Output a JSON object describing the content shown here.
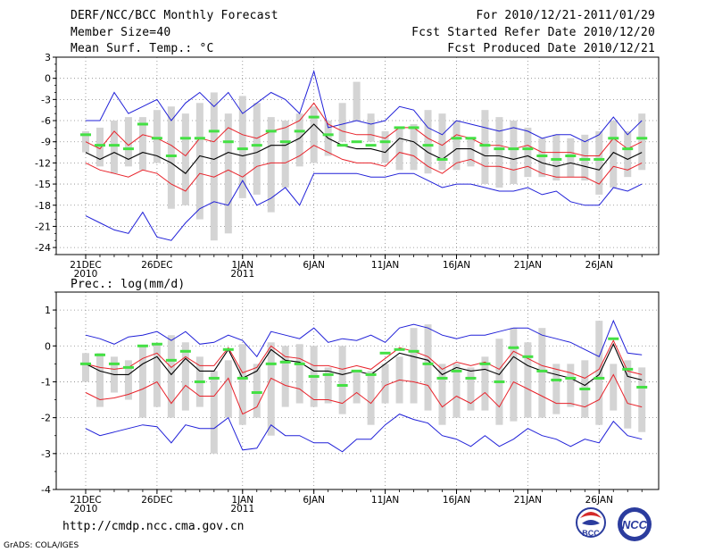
{
  "header": {
    "title": "DERF/NCC/BCC Monthly Forecast",
    "member_size": "Member Size=40",
    "variable": "Mean Surf. Temp.: °C",
    "forecast_period": "For 2010/12/21-2011/01/29",
    "fcst_started": "Fcst Started Refer Date 2010/12/20",
    "fcst_produced": "Fcst Produced Date 2010/12/21"
  },
  "footer": {
    "url": "http://cmdp.ncc.cma.gov.cn",
    "credit": "GrADS: COLA/IGES",
    "logo_bcc": "BCC",
    "logo_ncc": "NCC"
  },
  "colors": {
    "box": "#d4d4d4",
    "median": "#44e044",
    "mean": "#000000",
    "std": "#e8222a",
    "extreme": "#2020d8",
    "grid": "#888888"
  },
  "chart_data": [
    {
      "type": "box",
      "title": "Mean Surf. Temp.: °C",
      "x_labels": [
        "21DEC\n2010",
        "26DEC",
        "1JAN\n2011",
        "6JAN",
        "11JAN",
        "16JAN",
        "21JAN",
        "26JAN"
      ],
      "x_label_days": [
        1,
        6,
        12,
        17,
        22,
        27,
        32,
        37
      ],
      "days": 40,
      "ylim": [
        -25,
        3
      ],
      "yticks": [
        3,
        0,
        -3,
        -6,
        -9,
        -12,
        -15,
        -18,
        -21,
        -24
      ],
      "box_low": [
        -10.5,
        -12.5,
        -13.5,
        -12.5,
        -13,
        -12,
        -18.5,
        -18,
        -20,
        -23,
        -22,
        -17,
        -16.5,
        -19,
        -15.5,
        -12.5,
        -12,
        -11,
        -9,
        -6,
        -9,
        -12,
        -13,
        -13,
        -13.5,
        -13,
        -13,
        -12.5,
        -15,
        -15.5,
        -15,
        -14,
        -14,
        -14.5,
        -14,
        -14.5,
        -16.5,
        -15.5,
        -14,
        -13
      ],
      "box_high": [
        -7.5,
        -7,
        -6,
        -5.5,
        -5.5,
        -4.5,
        -4,
        -5,
        -3.5,
        -2,
        -5,
        -2.5,
        -3.5,
        -5.5,
        -6,
        -5,
        -4,
        -6,
        -3.5,
        -0.5,
        -5,
        -7.5,
        -7,
        -6.5,
        -4.5,
        -5,
        -6,
        -8.5,
        -4.5,
        -5.5,
        -6,
        -7,
        -8.5,
        -8,
        -8.5,
        -8,
        -7.5,
        -6,
        -7.5,
        -5
      ],
      "median": [
        -8,
        -9.5,
        -9.5,
        -10,
        -6.5,
        -8.5,
        -11,
        -8.5,
        -8.5,
        -7.5,
        -9,
        -10,
        -9.5,
        -7.5,
        -9,
        -7.5,
        -5.5,
        -8,
        -9.5,
        -9,
        -9.5,
        -9,
        -7,
        -7,
        -9.5,
        -11.5,
        -8.5,
        -8.5,
        -9.5,
        -10,
        -10,
        -10,
        -11,
        -11.5,
        -11,
        -11.5,
        -11.5,
        -8.5,
        -10,
        -8.5
      ],
      "mean": [
        -10.5,
        -11.5,
        -10.5,
        -11.5,
        -10.5,
        -11,
        -12,
        -13.5,
        -11,
        -11.5,
        -10.5,
        -11,
        -10.5,
        -9.5,
        -9.5,
        -8.5,
        -6.5,
        -8.5,
        -9.5,
        -10,
        -10,
        -10.5,
        -8.5,
        -9,
        -10.5,
        -11.5,
        -10,
        -10,
        -11,
        -11,
        -11.5,
        -11,
        -12,
        -12.5,
        -12,
        -12.5,
        -13,
        -10.5,
        -11.5,
        -10.5
      ],
      "std_high": [
        -9,
        -10,
        -7.5,
        -9.5,
        -8,
        -8.5,
        -9.5,
        -11,
        -8.5,
        -9,
        -7,
        -8,
        -8.5,
        -7.5,
        -7,
        -6,
        -3.5,
        -6.5,
        -7.5,
        -8,
        -8,
        -8.5,
        -7,
        -7,
        -8.5,
        -9.5,
        -8,
        -8.5,
        -9.5,
        -9.5,
        -10,
        -9.5,
        -10.5,
        -10.5,
        -10.5,
        -11,
        -11,
        -8.5,
        -10,
        -9
      ],
      "std_low": [
        -12,
        -13,
        -13.5,
        -14,
        -13,
        -13.5,
        -15,
        -16,
        -13.5,
        -14,
        -13,
        -14,
        -12.5,
        -12,
        -12,
        -11,
        -9.5,
        -10.5,
        -11.5,
        -12,
        -12,
        -12.5,
        -10.5,
        -11,
        -12.5,
        -13.5,
        -12,
        -11.5,
        -12.5,
        -12.5,
        -13,
        -12.5,
        -13.5,
        -14,
        -14,
        -14,
        -15,
        -12.5,
        -13,
        -12
      ],
      "max": [
        -6,
        -6,
        -2,
        -5,
        -4,
        -3,
        -6,
        -3.5,
        -2,
        -4,
        -2,
        -5,
        -3.5,
        -2,
        -3,
        -5,
        1,
        -7,
        -6.5,
        -6,
        -6.5,
        -6,
        -4,
        -4.5,
        -7,
        -8,
        -6,
        -6.5,
        -7,
        -7.5,
        -7,
        -7.5,
        -8.5,
        -8,
        -8,
        -9,
        -8,
        -5.5,
        -8,
        -6
      ],
      "min": [
        -19.5,
        -20.5,
        -21.5,
        -22,
        -19,
        -22.5,
        -23,
        -20.5,
        -18.5,
        -17.5,
        -18,
        -14.5,
        -18,
        -17,
        -15.5,
        -18,
        -13.5,
        -13.5,
        -13.5,
        -13.5,
        -14,
        -14,
        -13.5,
        -13.5,
        -14.5,
        -15.5,
        -15,
        -15,
        -15.5,
        -16,
        -16,
        -15.5,
        -16.5,
        -16,
        -17.5,
        -18,
        -18,
        -15.5,
        -16,
        -15
      ]
    },
    {
      "type": "box",
      "title": "Prec.: log(mm/d)",
      "x_labels": [
        "21DEC\n2010",
        "26DEC",
        "1JAN\n2011",
        "6JAN",
        "11JAN",
        "16JAN",
        "21JAN",
        "26JAN"
      ],
      "x_label_days": [
        1,
        6,
        12,
        17,
        22,
        27,
        32,
        37
      ],
      "days": 40,
      "ylim": [
        -4,
        1.5
      ],
      "yticks": [
        1,
        0,
        -1,
        -2,
        -3,
        -4
      ],
      "box_low": [
        -1,
        -1.7,
        -1.3,
        -1.5,
        -2,
        -1.7,
        -2,
        -1.8,
        -1.7,
        -3,
        -2,
        -2.2,
        -2,
        -2.5,
        -1.7,
        -1.6,
        -1.7,
        -1.6,
        -1.9,
        -1.6,
        -2.2,
        -1.6,
        -1.6,
        -1.6,
        -1.8,
        -2.2,
        -2,
        -1.8,
        -1.8,
        -2.2,
        -2.1,
        -2,
        -2,
        -1.9,
        -1.7,
        -2,
        -2.2,
        -1.8,
        -2.3,
        -2.4
      ],
      "box_high": [
        -0.2,
        -0.2,
        -0.3,
        -0.4,
        0,
        0.05,
        0.3,
        0.1,
        -0.3,
        -0.7,
        -0.4,
        0.05,
        -0.5,
        0.1,
        0,
        0.05,
        0,
        -0.6,
        0,
        -0.7,
        -0.7,
        -0.5,
        -0.3,
        0.5,
        0.6,
        -0.5,
        -0.5,
        -0.6,
        -0.3,
        0.2,
        0.5,
        0.1,
        0.5,
        -0.5,
        -0.5,
        -0.4,
        0.7,
        -0.5,
        -0.4,
        -0.6
      ],
      "median": [
        -0.5,
        -0.25,
        -0.5,
        -0.6,
        0,
        0.05,
        -0.4,
        -0.15,
        -1,
        -0.9,
        -0.1,
        -0.9,
        -1.3,
        -0.5,
        -0.45,
        -0.5,
        -0.85,
        -0.8,
        -1.1,
        -0.7,
        -0.8,
        -0.2,
        -0.1,
        -0.15,
        -0.5,
        -0.9,
        -0.7,
        -0.9,
        -0.5,
        -1,
        -0.05,
        -0.3,
        -0.7,
        -0.95,
        -0.9,
        -1.2,
        -0.9,
        0.2,
        -0.65,
        -1.15
      ],
      "mean": [
        -0.5,
        -0.7,
        -0.8,
        -0.8,
        -0.5,
        -0.3,
        -0.8,
        -0.35,
        -0.7,
        -0.7,
        -0.1,
        -0.9,
        -0.7,
        -0.1,
        -0.4,
        -0.45,
        -0.7,
        -0.7,
        -0.8,
        -0.7,
        -0.8,
        -0.5,
        -0.2,
        -0.3,
        -0.4,
        -0.8,
        -0.6,
        -0.7,
        -0.65,
        -0.8,
        -0.3,
        -0.55,
        -0.7,
        -0.8,
        -0.9,
        -1.1,
        -0.8,
        0.05,
        -0.85,
        -0.95
      ],
      "std_high": [
        -0.5,
        -0.6,
        -0.65,
        -0.6,
        -0.35,
        -0.2,
        -0.6,
        -0.3,
        -0.55,
        -0.55,
        -0.05,
        -0.75,
        -0.6,
        0,
        -0.3,
        -0.35,
        -0.55,
        -0.55,
        -0.65,
        -0.55,
        -0.65,
        -0.35,
        -0.05,
        -0.15,
        -0.3,
        -0.65,
        -0.45,
        -0.55,
        -0.45,
        -0.65,
        -0.15,
        -0.35,
        -0.55,
        -0.65,
        -0.75,
        -0.9,
        -0.65,
        0.15,
        -0.7,
        -0.8
      ],
      "std_low": [
        -1.3,
        -1.5,
        -1.45,
        -1.35,
        -1.2,
        -1,
        -1.6,
        -1.1,
        -1.4,
        -1.4,
        -0.9,
        -1.9,
        -1.7,
        -0.9,
        -1.1,
        -1.2,
        -1.5,
        -1.5,
        -1.6,
        -1.3,
        -1.6,
        -1.1,
        -0.95,
        -1,
        -1.1,
        -1.7,
        -1.4,
        -1.6,
        -1.3,
        -1.7,
        -1,
        -1.2,
        -1.4,
        -1.6,
        -1.6,
        -1.7,
        -1.5,
        -0.8,
        -1.6,
        -1.7
      ],
      "max": [
        0.3,
        0.2,
        0.05,
        0.25,
        0.3,
        0.4,
        0.15,
        0.4,
        0.05,
        0.1,
        0.3,
        0.15,
        -0.3,
        0.4,
        0.3,
        0.2,
        0.5,
        0.1,
        0.2,
        0.15,
        0.3,
        0.1,
        0.5,
        0.6,
        0.5,
        0.3,
        0.2,
        0.3,
        0.3,
        0.4,
        0.5,
        0.5,
        0.3,
        0.2,
        0.1,
        -0.1,
        -0.3,
        0.7,
        -0.2,
        -0.25
      ],
      "min": [
        -2.3,
        -2.5,
        -2.4,
        -2.3,
        -2.2,
        -2.25,
        -2.7,
        -2.2,
        -2.3,
        -2.3,
        -2,
        -2.9,
        -2.85,
        -2.2,
        -2.5,
        -2.5,
        -2.7,
        -2.7,
        -2.95,
        -2.6,
        -2.6,
        -2.2,
        -1.9,
        -2.05,
        -2.15,
        -2.5,
        -2.6,
        -2.8,
        -2.5,
        -2.8,
        -2.6,
        -2.3,
        -2.5,
        -2.6,
        -2.8,
        -2.6,
        -2.7,
        -2.1,
        -2.5,
        -2.6
      ]
    }
  ]
}
